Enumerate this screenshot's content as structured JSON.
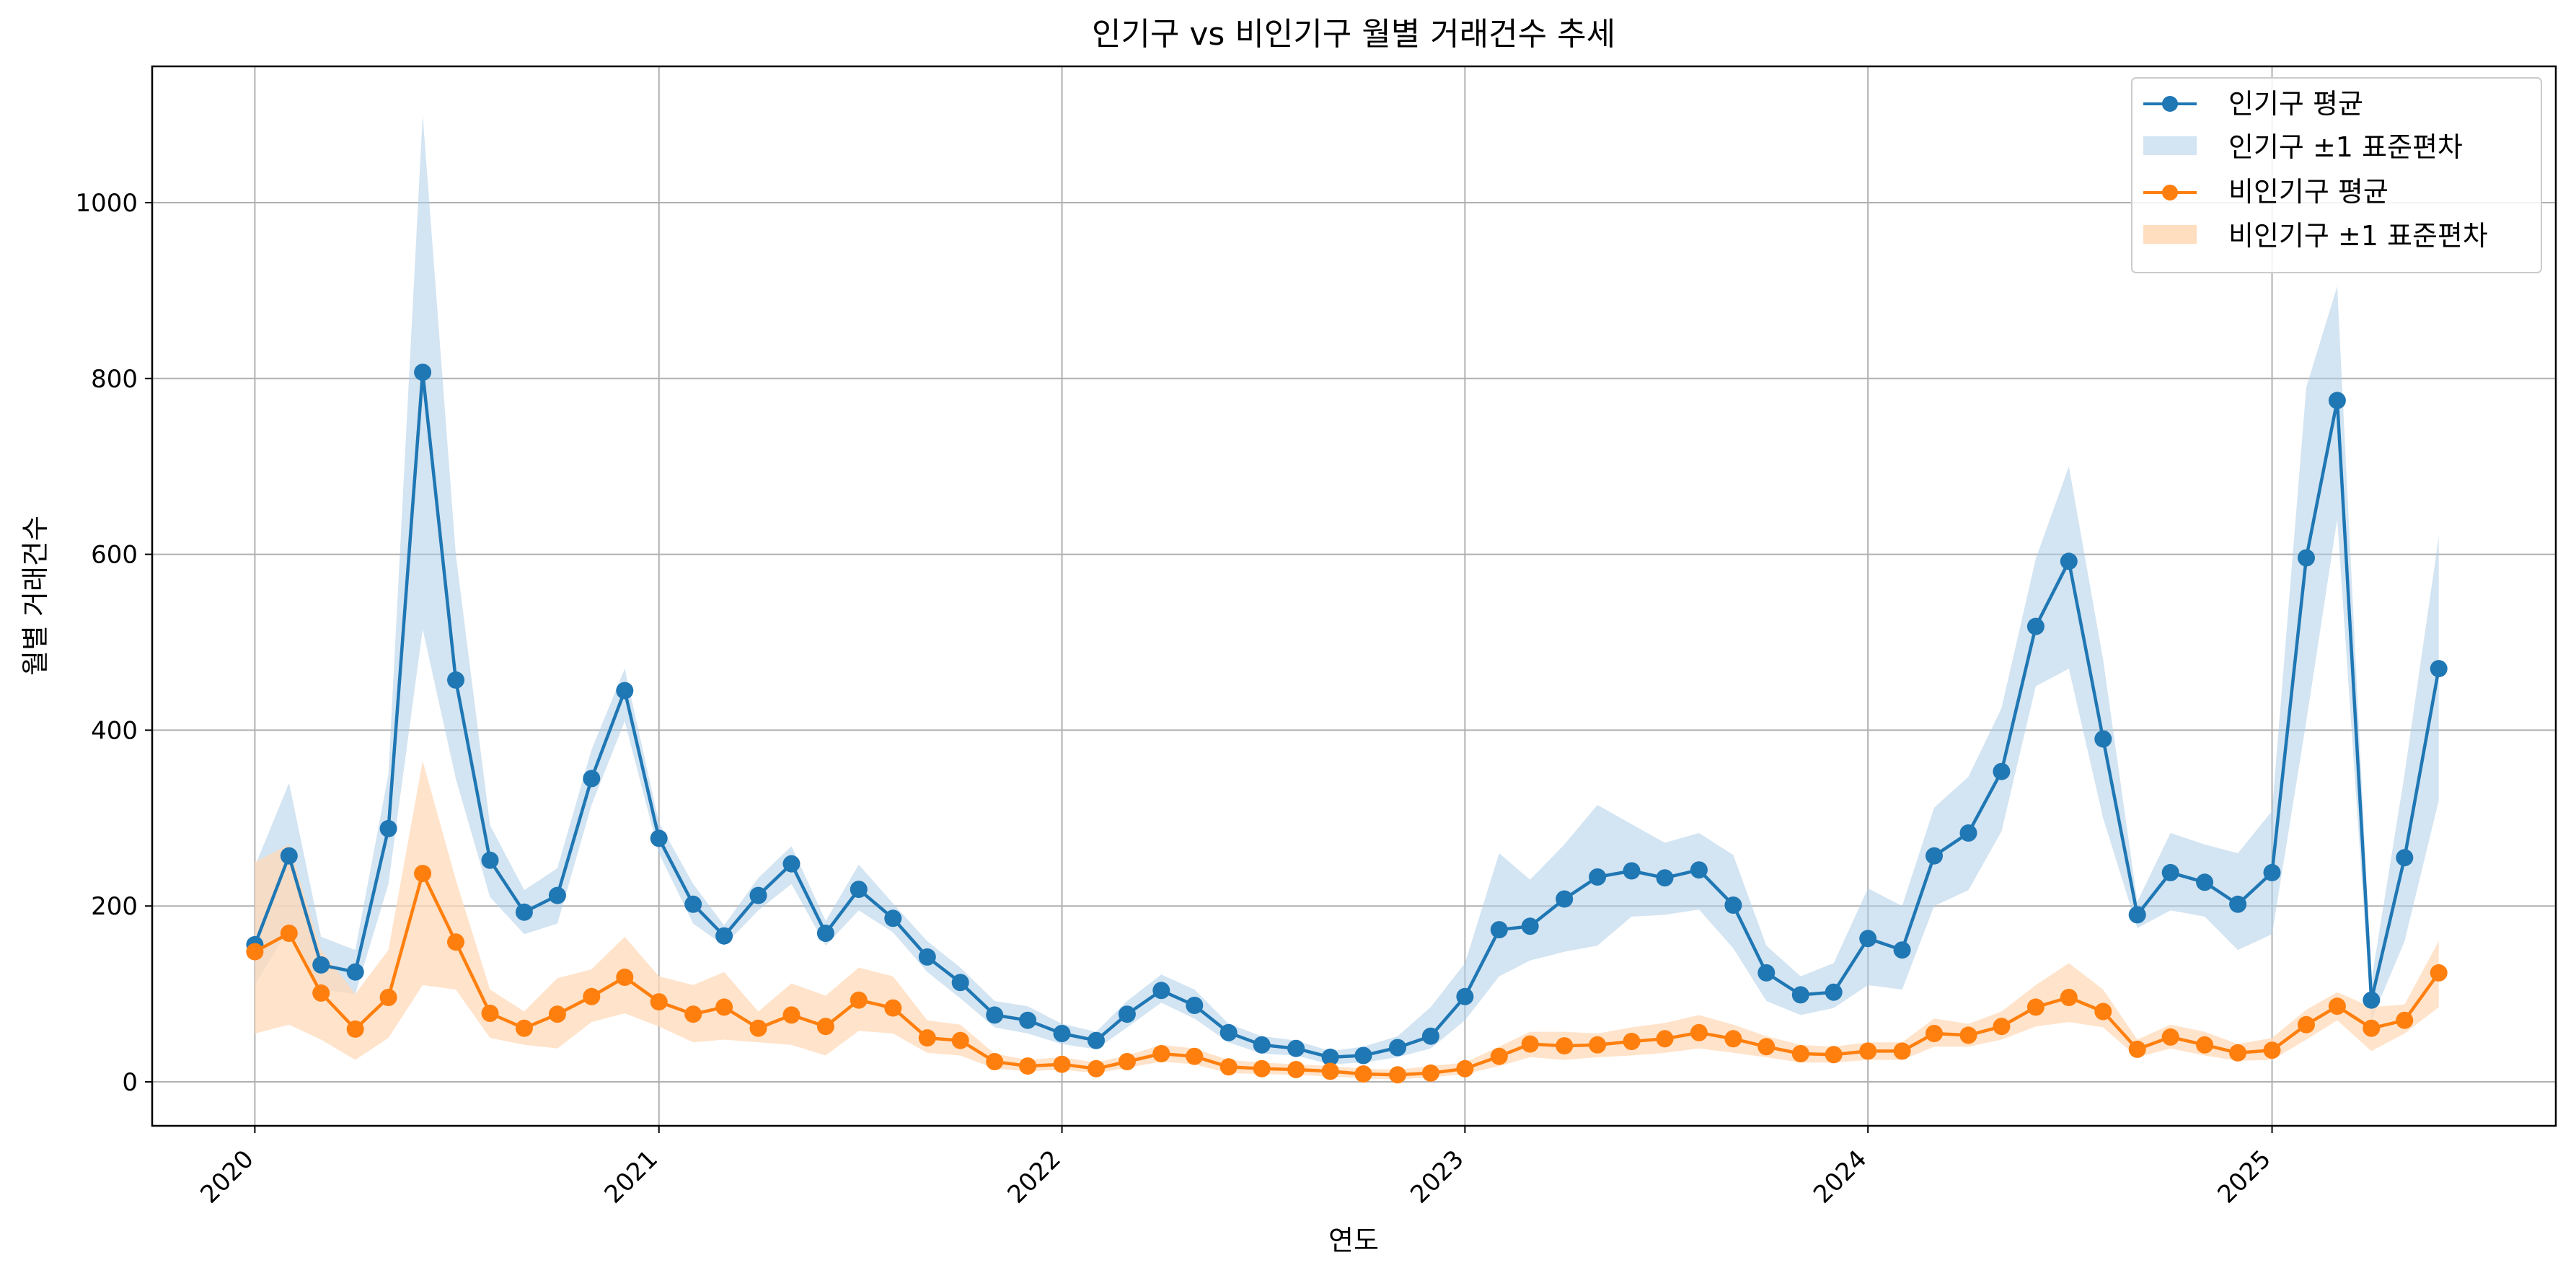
{
  "chart_data": {
    "type": "line",
    "title": "인기구 vs 비인기구 월별 거래건수 추세",
    "xlabel": "연도",
    "ylabel": "월별 거래건수",
    "x_start": "2020-01",
    "x_ticks": [
      "2020",
      "2021",
      "2022",
      "2023",
      "2024",
      "2025"
    ],
    "x_range": [
      "2019-09-30",
      "2025-09-15"
    ],
    "y_ticks": [
      0,
      200,
      400,
      600,
      800,
      1000
    ],
    "ylim": [
      -50,
      1155
    ],
    "grid": true,
    "legend_position": "top-right",
    "series": [
      {
        "name": "인기구 평균",
        "band_name": "인기구 ±1 표준편차",
        "color": "#1f77b4",
        "band_color": "#aecde7",
        "mean": [
          156,
          257,
          133,
          125,
          288,
          807,
          457,
          252,
          193,
          212,
          345,
          445,
          277,
          202,
          166,
          212,
          248,
          169,
          219,
          186,
          142,
          113,
          76,
          70,
          55,
          47,
          77,
          104,
          87,
          56,
          42,
          38,
          28,
          30,
          39,
          52,
          97,
          173,
          177,
          208,
          233,
          240,
          232,
          241,
          201,
          124,
          99,
          102,
          163,
          150,
          257,
          283,
          353,
          518,
          592,
          390,
          190,
          238,
          227,
          202,
          238,
          596,
          775,
          93,
          255,
          470
        ],
        "lower": [
          110,
          175,
          105,
          100,
          225,
          515,
          345,
          210,
          168,
          180,
          315,
          410,
          260,
          180,
          155,
          195,
          225,
          155,
          195,
          170,
          125,
          95,
          62,
          55,
          43,
          37,
          62,
          90,
          72,
          45,
          32,
          30,
          20,
          22,
          28,
          38,
          70,
          120,
          138,
          148,
          155,
          188,
          190,
          196,
          152,
          92,
          76,
          84,
          110,
          105,
          200,
          218,
          285,
          450,
          470,
          300,
          175,
          195,
          188,
          150,
          168,
          410,
          640,
          70,
          160,
          320
        ],
        "upper": [
          245,
          340,
          165,
          150,
          350,
          1100,
          600,
          292,
          218,
          243,
          378,
          470,
          295,
          225,
          178,
          232,
          268,
          183,
          247,
          203,
          160,
          130,
          92,
          86,
          66,
          57,
          92,
          122,
          105,
          66,
          52,
          47,
          35,
          40,
          52,
          85,
          135,
          260,
          230,
          270,
          315,
          293,
          272,
          283,
          258,
          155,
          120,
          135,
          220,
          200,
          312,
          347,
          425,
          595,
          700,
          480,
          205,
          283,
          270,
          260,
          308,
          790,
          905,
          115,
          350,
          620
        ]
      },
      {
        "name": "비인기구 평균",
        "band_name": "비인기구 ±1 표준편차",
        "color": "#ff7f0e",
        "band_color": "#ffd9b8",
        "mean": [
          148,
          169,
          101,
          60,
          96,
          237,
          159,
          78,
          61,
          77,
          97,
          119,
          91,
          77,
          85,
          61,
          76,
          63,
          93,
          84,
          50,
          47,
          23,
          18,
          20,
          15,
          23,
          32,
          29,
          17,
          15,
          14,
          12,
          9,
          8,
          10,
          15,
          29,
          43,
          41,
          42,
          46,
          49,
          56,
          49,
          40,
          32,
          31,
          35,
          35,
          55,
          53,
          63,
          85,
          96,
          80,
          37,
          51,
          42,
          33,
          36,
          65,
          86,
          61,
          70,
          124
        ],
        "lower": [
          55,
          65,
          48,
          25,
          50,
          110,
          105,
          50,
          42,
          38,
          68,
          78,
          63,
          45,
          48,
          45,
          42,
          30,
          58,
          55,
          33,
          30,
          15,
          12,
          14,
          10,
          16,
          23,
          20,
          10,
          9,
          8,
          6,
          4,
          3,
          5,
          9,
          18,
          28,
          25,
          28,
          30,
          33,
          38,
          33,
          28,
          22,
          22,
          25,
          25,
          40,
          40,
          48,
          63,
          68,
          62,
          28,
          38,
          30,
          24,
          25,
          48,
          70,
          35,
          55,
          85
        ],
        "upper": [
          250,
          270,
          150,
          100,
          150,
          365,
          230,
          105,
          80,
          118,
          128,
          165,
          120,
          110,
          125,
          80,
          112,
          98,
          130,
          120,
          70,
          65,
          32,
          25,
          28,
          22,
          30,
          42,
          38,
          25,
          22,
          20,
          18,
          15,
          14,
          18,
          22,
          40,
          57,
          57,
          55,
          62,
          67,
          76,
          65,
          52,
          42,
          40,
          45,
          45,
          72,
          66,
          80,
          110,
          135,
          105,
          48,
          65,
          57,
          43,
          50,
          82,
          102,
          85,
          88,
          160
        ]
      }
    ]
  }
}
